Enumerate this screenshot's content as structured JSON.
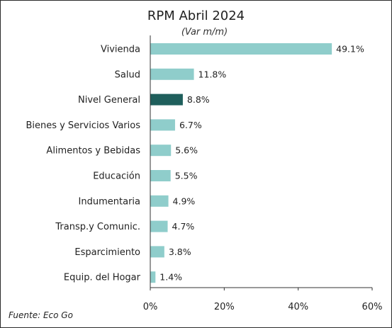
{
  "chart_data": {
    "type": "bar",
    "orientation": "horizontal",
    "title": "RPM Abril 2024",
    "subtitle": "(Var m/m)",
    "source": "Fuente: Eco Go",
    "categories": [
      "Vivienda",
      "Salud",
      "Nivel General",
      "Bienes y Servicios Varios",
      "Alimentos y Bebidas",
      "Educación",
      "Indumentaria",
      "Transp.y Comunic.",
      "Esparcimiento",
      "Equip. del Hogar"
    ],
    "values": [
      49.1,
      11.8,
      8.8,
      6.7,
      5.6,
      5.5,
      4.9,
      4.7,
      3.8,
      1.4
    ],
    "value_labels": [
      "49.1%",
      "11.8%",
      "8.8%",
      "6.7%",
      "5.6%",
      "5.5%",
      "4.9%",
      "4.7%",
      "3.8%",
      "1.4%"
    ],
    "highlight": "Nivel General",
    "xlim": [
      0,
      60
    ],
    "xticks": [
      0,
      20,
      40,
      60
    ],
    "xtick_labels": [
      "0%",
      "20%",
      "40%",
      "60%"
    ],
    "grid": false,
    "legend": "none",
    "colors": {
      "bar": "#8fcdcb",
      "highlight": "#1f5f5c",
      "axis": "#333333"
    }
  }
}
